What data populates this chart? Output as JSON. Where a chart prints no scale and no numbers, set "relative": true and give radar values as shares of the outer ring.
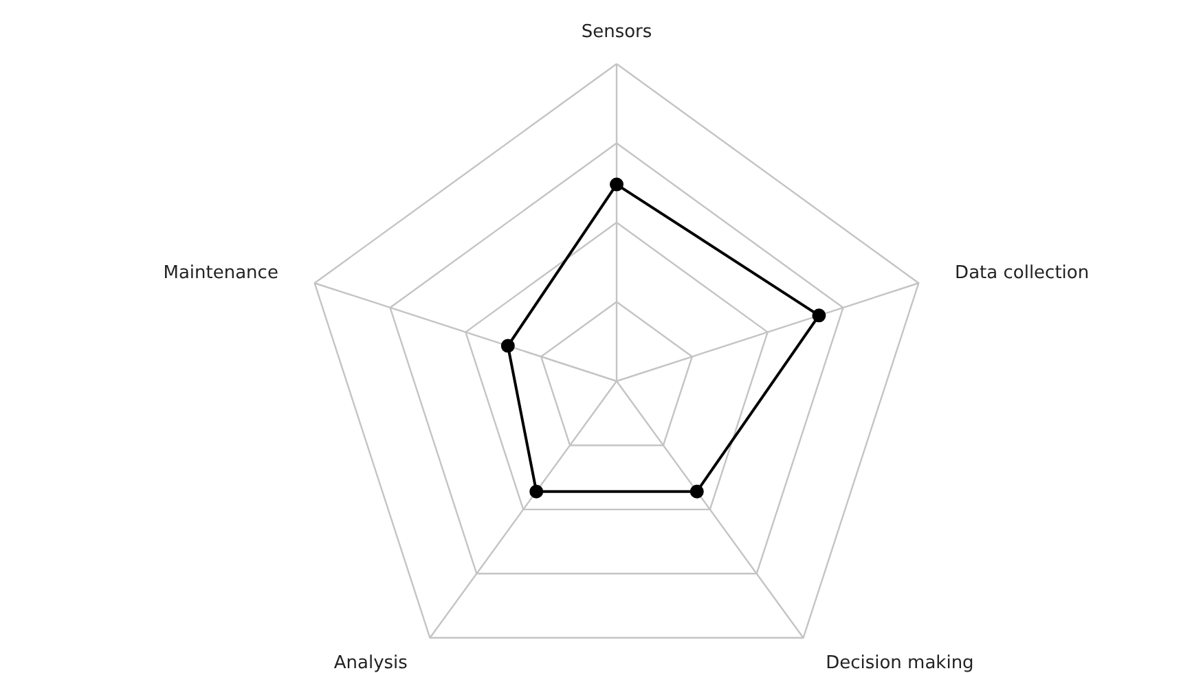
{
  "chart_data": {
    "type": "radar",
    "relative": true,
    "categories": [
      "Sensors",
      "Data collection",
      "Decision making",
      "Analysis",
      "Maintenance"
    ],
    "series": [
      {
        "color": "#000000",
        "values": [
          0.62,
          0.67,
          0.43,
          0.43,
          0.36
        ]
      }
    ],
    "marker": "circle",
    "line_style": "solid",
    "grid": true
  }
}
